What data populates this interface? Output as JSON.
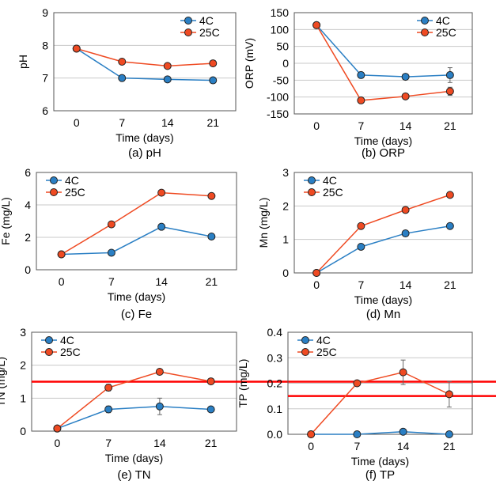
{
  "colors": {
    "series_4c": "#2a7fc4",
    "series_25c": "#ef4a22",
    "marker_edge": "#222222",
    "threshold": "#ff0000",
    "grid": "#c8c8c8",
    "axis": "#555555"
  },
  "chart_data": [
    {
      "id": "a",
      "type": "line",
      "caption": "(a) pH",
      "title": "",
      "xlabel": "Time (days)",
      "ylabel": "pH",
      "x": [
        0,
        7,
        14,
        21
      ],
      "ylim": [
        6,
        9
      ],
      "ytick_step": 1,
      "yticks": [
        "6",
        "7",
        "8",
        "9"
      ],
      "xticks": [
        "0",
        "7",
        "14",
        "21"
      ],
      "legend_position": "top-right",
      "series": [
        {
          "name": "4C",
          "color_key": "series_4c",
          "values": [
            7.9,
            7.0,
            6.96,
            6.93
          ],
          "errors": [
            0,
            0,
            0,
            0
          ]
        },
        {
          "name": "25C",
          "color_key": "series_25c",
          "values": [
            7.9,
            7.5,
            7.37,
            7.45
          ],
          "errors": [
            0,
            0,
            0,
            0
          ]
        }
      ]
    },
    {
      "id": "b",
      "type": "line",
      "caption": "(b) ORP",
      "title": "",
      "xlabel": "Time (days)",
      "ylabel": "ORP (mV)",
      "x": [
        0,
        7,
        14,
        21
      ],
      "ylim": [
        -150,
        150
      ],
      "ytick_step": 50,
      "yticks": [
        "-150",
        "-100",
        "-50",
        "0",
        "50",
        "100",
        "150"
      ],
      "xticks": [
        "0",
        "7",
        "14",
        "21"
      ],
      "legend_position": "top-right",
      "series": [
        {
          "name": "4C",
          "color_key": "series_4c",
          "values": [
            113,
            -35,
            -40,
            -35
          ],
          "errors": [
            0,
            0,
            0,
            22
          ]
        },
        {
          "name": "25C",
          "color_key": "series_25c",
          "values": [
            113,
            -110,
            -98,
            -83
          ],
          "errors": [
            0,
            0,
            0,
            12
          ]
        }
      ]
    },
    {
      "id": "c",
      "type": "line",
      "caption": "(c) Fe",
      "title": "",
      "xlabel": "Time (days)",
      "ylabel": "Fe (mg/L)",
      "x": [
        0,
        7,
        14,
        21
      ],
      "ylim": [
        0,
        6
      ],
      "ytick_step": 2,
      "yticks": [
        "0",
        "2",
        "4",
        "6"
      ],
      "xticks": [
        "0",
        "7",
        "14",
        "21"
      ],
      "legend_position": "top-left",
      "series": [
        {
          "name": "4C",
          "color_key": "series_4c",
          "values": [
            0.95,
            1.05,
            2.65,
            2.05
          ],
          "errors": [
            0,
            0,
            0,
            0
          ]
        },
        {
          "name": "25C",
          "color_key": "series_25c",
          "values": [
            0.95,
            2.8,
            4.75,
            4.55
          ],
          "errors": [
            0,
            0,
            0,
            0
          ]
        }
      ]
    },
    {
      "id": "d",
      "type": "line",
      "caption": "(d) Mn",
      "title": "",
      "xlabel": "Time (days)",
      "ylabel": "Mn (mg/L)",
      "x": [
        0,
        7,
        14,
        21
      ],
      "ylim": [
        0,
        3
      ],
      "ytick_step": 1,
      "yticks": [
        "0",
        "1",
        "2",
        "3"
      ],
      "xticks": [
        "0",
        "7",
        "14",
        "21"
      ],
      "legend_position": "top-left",
      "series": [
        {
          "name": "4C",
          "color_key": "series_4c",
          "values": [
            0.0,
            0.78,
            1.18,
            1.4
          ],
          "errors": [
            0,
            0,
            0,
            0
          ]
        },
        {
          "name": "25C",
          "color_key": "series_25c",
          "values": [
            0.0,
            1.4,
            1.88,
            2.33
          ],
          "errors": [
            0,
            0,
            0,
            0
          ]
        }
      ]
    },
    {
      "id": "e",
      "type": "line",
      "caption": "(e) TN",
      "title": "",
      "xlabel": "Time (days)",
      "ylabel": "TN (mg/L)",
      "x": [
        0,
        7,
        14,
        21
      ],
      "ylim": [
        0,
        3
      ],
      "ytick_step": 1,
      "yticks": [
        "0",
        "1",
        "2",
        "3"
      ],
      "xticks": [
        "0",
        "7",
        "14",
        "21"
      ],
      "legend_position": "top-left",
      "threshold": 1.5,
      "series": [
        {
          "name": "4C",
          "color_key": "series_4c",
          "values": [
            0.08,
            0.66,
            0.75,
            0.66
          ],
          "errors": [
            0,
            0.1,
            0.25,
            0
          ]
        },
        {
          "name": "25C",
          "color_key": "series_25c",
          "values": [
            0.08,
            1.32,
            1.8,
            1.51
          ],
          "errors": [
            0,
            0.1,
            0.05,
            0
          ]
        }
      ]
    },
    {
      "id": "f",
      "type": "line",
      "caption": "(f) TP",
      "title": "",
      "xlabel": "Time (days)",
      "ylabel": "TP (mg/L)",
      "x": [
        0,
        7,
        14,
        21
      ],
      "ylim": [
        0,
        0.4
      ],
      "ytick_step": 0.1,
      "yticks": [
        "0.0",
        "0.1",
        "0.2",
        "0.3",
        "0.4"
      ],
      "xticks": [
        "0",
        "7",
        "14",
        "21"
      ],
      "legend_position": "top-left",
      "threshold": 0.15,
      "series": [
        {
          "name": "4C",
          "color_key": "series_4c",
          "values": [
            0.0,
            0.0,
            0.01,
            0.0
          ],
          "errors": [
            0,
            0,
            0,
            0
          ]
        },
        {
          "name": "25C",
          "color_key": "series_25c",
          "values": [
            0.0,
            0.2,
            0.243,
            0.157
          ],
          "errors": [
            0,
            0,
            0.048,
            0.05
          ]
        }
      ]
    }
  ]
}
